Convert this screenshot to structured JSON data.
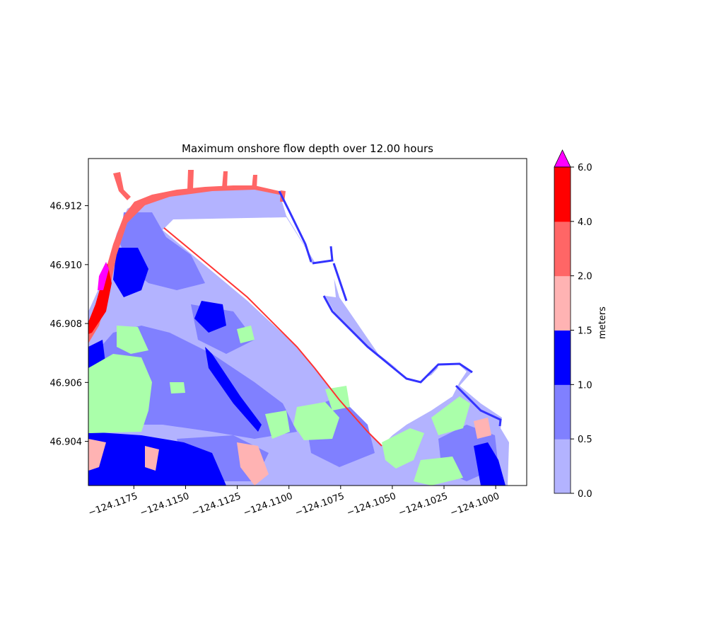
{
  "chart_data": {
    "type": "heatmap",
    "title": "Maximum onshore flow depth over 12.00 hours",
    "xlabel": "",
    "ylabel": "",
    "xlim": [
      -124.1197,
      -124.0985
    ],
    "ylim": [
      46.9025,
      46.9136
    ],
    "x_ticks": [
      -124.1175,
      -124.115,
      -124.1125,
      -124.11,
      -124.1075,
      -124.105,
      -124.1025,
      -124.1
    ],
    "x_tick_labels": [
      "−124.1175",
      "−124.1150",
      "−124.1125",
      "−124.1100",
      "−124.1075",
      "−124.1050",
      "−124.1025",
      "−124.1000"
    ],
    "y_ticks": [
      46.904,
      46.906,
      46.908,
      46.91,
      46.912
    ],
    "y_tick_labels": [
      "46.904",
      "46.906",
      "46.908",
      "46.910",
      "46.912"
    ],
    "colorbar": {
      "label": "meters",
      "levels": [
        0.0,
        0.5,
        1.0,
        1.5,
        2.0,
        4.0,
        6.0
      ],
      "level_labels": [
        "0.0",
        "0.5",
        "1.0",
        "1.5",
        "2.0",
        "4.0",
        "6.0"
      ],
      "colors": [
        "#b3b3ff",
        "#8080ff",
        "#0000ff",
        "#ffb3b3",
        "#ff6666",
        "#ff0000"
      ],
      "extend_max_color": "#ff00ff",
      "dry_land_color": "#aaffaa"
    },
    "grid": false
  }
}
